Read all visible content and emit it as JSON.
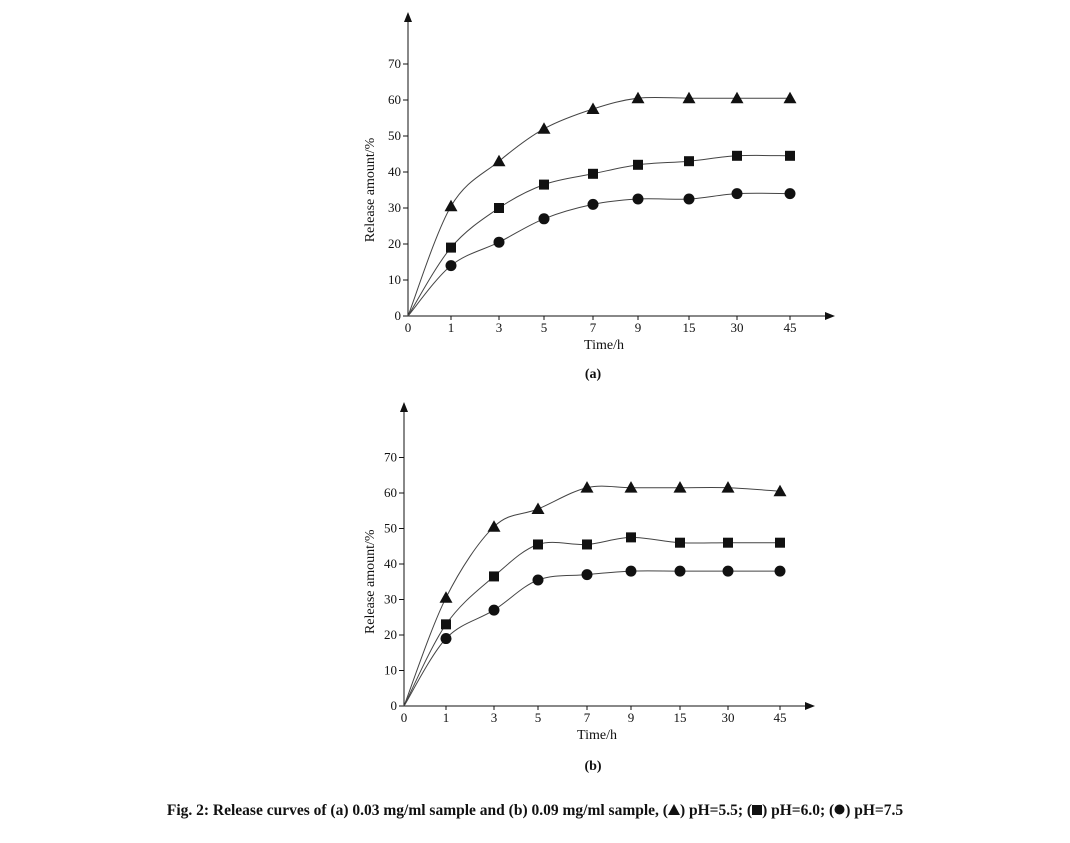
{
  "chart_data": [
    {
      "type": "line",
      "panel_label": "(a)",
      "xlabel": "Time/h",
      "ylabel": "Release amount/%",
      "categories": [
        "1",
        "3",
        "5",
        "7",
        "9",
        "15",
        "30",
        "45"
      ],
      "x_origin_label": "0",
      "yticks": [
        0,
        10,
        20,
        30,
        40,
        50,
        60,
        70
      ],
      "ylim": [
        0,
        80
      ],
      "grid": false,
      "series": [
        {
          "marker": "triangle",
          "values": [
            30.5,
            43,
            52,
            57.5,
            60.5,
            60.5,
            60.5,
            60.5
          ]
        },
        {
          "marker": "square",
          "values": [
            19,
            30,
            36.5,
            39.5,
            42,
            43,
            44.5,
            44.5
          ]
        },
        {
          "marker": "circle",
          "values": [
            14,
            20.5,
            27,
            31,
            32.5,
            32.5,
            34,
            34
          ]
        }
      ]
    },
    {
      "type": "line",
      "panel_label": "(b)",
      "xlabel": "Time/h",
      "ylabel": "Release amount/%",
      "categories": [
        "1",
        "3",
        "5",
        "7",
        "9",
        "15",
        "30",
        "45"
      ],
      "x_origin_label": "0",
      "yticks": [
        0,
        10,
        20,
        30,
        40,
        50,
        60,
        70
      ],
      "ylim": [
        0,
        80
      ],
      "grid": false,
      "series": [
        {
          "marker": "triangle",
          "values": [
            30.5,
            50.5,
            55.5,
            61.5,
            61.5,
            61.5,
            61.5,
            60.5
          ]
        },
        {
          "marker": "square",
          "values": [
            23,
            36.5,
            45.5,
            45.5,
            47.5,
            46,
            46,
            46
          ]
        },
        {
          "marker": "circle",
          "values": [
            19,
            27,
            35.5,
            37,
            38,
            38,
            38,
            38
          ]
        }
      ]
    }
  ],
  "caption": {
    "main": "Fig. 2: Release curves of (a) 0.03 mg/ml sample and (b) 0.09 mg/ml sample, (",
    "legend": [
      {
        "marker": "triangle",
        "label": ") pH=5.5; ("
      },
      {
        "marker": "square",
        "label": ") pH=6.0; ("
      },
      {
        "marker": "circle",
        "label": ") pH=7.5"
      }
    ]
  },
  "colors": {
    "ink": "#111111",
    "line": "#444444",
    "background": "#ffffff"
  }
}
